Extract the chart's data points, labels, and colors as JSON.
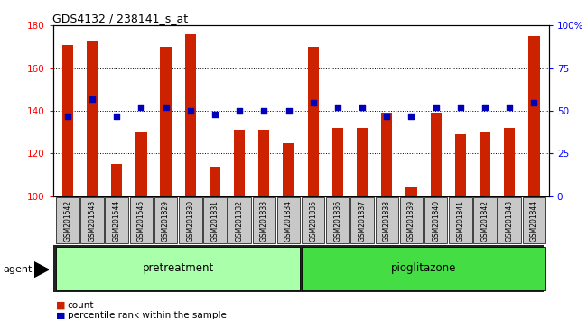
{
  "title": "GDS4132 / 238141_s_at",
  "categories": [
    "GSM201542",
    "GSM201543",
    "GSM201544",
    "GSM201545",
    "GSM201829",
    "GSM201830",
    "GSM201831",
    "GSM201832",
    "GSM201833",
    "GSM201834",
    "GSM201835",
    "GSM201836",
    "GSM201837",
    "GSM201838",
    "GSM201839",
    "GSM201840",
    "GSM201841",
    "GSM201842",
    "GSM201843",
    "GSM201844"
  ],
  "counts": [
    171,
    173,
    115,
    130,
    170,
    176,
    114,
    131,
    131,
    125,
    170,
    132,
    132,
    139,
    104,
    139,
    129,
    130,
    132,
    175
  ],
  "percentiles": [
    47,
    57,
    47,
    52,
    52,
    50,
    48,
    50,
    50,
    50,
    55,
    52,
    52,
    47,
    47,
    52,
    52,
    52,
    52,
    55
  ],
  "bar_color": "#CC2200",
  "dot_color": "#0000BB",
  "ylim_left": [
    100,
    180
  ],
  "ylim_right": [
    0,
    100
  ],
  "yticks_left": [
    100,
    120,
    140,
    160,
    180
  ],
  "yticks_right": [
    0,
    25,
    50,
    75,
    100
  ],
  "ytick_labels_right": [
    "0",
    "25",
    "50",
    "75",
    "100%"
  ],
  "pretreatment_color": "#AAFFAA",
  "pioglitazone_color": "#44DD44",
  "agent_label": "agent",
  "pretreatment_label": "pretreatment",
  "pioglitazone_label": "pioglitazone",
  "legend_count": "count",
  "legend_percentile": "percentile rank within the sample",
  "count_base": 100
}
